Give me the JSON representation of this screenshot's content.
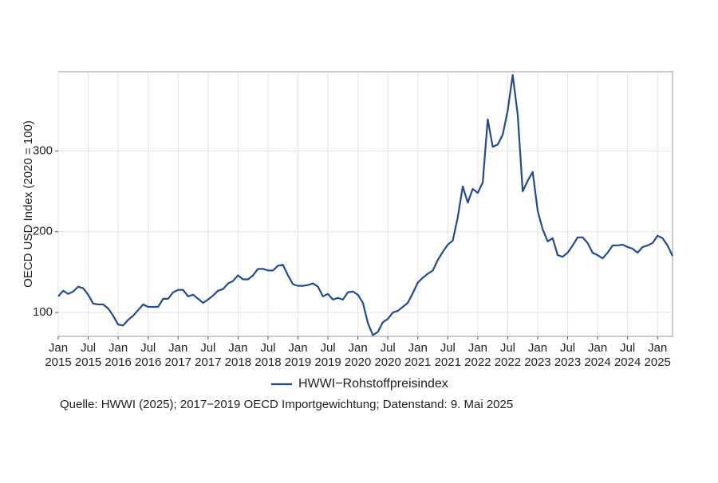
{
  "chart_data": {
    "type": "line",
    "y_label": "OECD USD Index (2020 = 100)",
    "caption": "Quelle: HWWI (2025); 2017−2019 OECD Importgewichtung; Datenstand: 9. Mai 2025",
    "legend": "bottom",
    "grid": true,
    "xlim": [
      "2015-01",
      "2025-04"
    ],
    "xticks": [
      {
        "value": "2015-01",
        "label": "Jan 2015"
      },
      {
        "value": "2015-07",
        "label": "Jul 2015"
      },
      {
        "value": "2016-01",
        "label": "Jan 2016"
      },
      {
        "value": "2016-07",
        "label": "Jul 2016"
      },
      {
        "value": "2017-01",
        "label": "Jan 2017"
      },
      {
        "value": "2017-07",
        "label": "Jul 2017"
      },
      {
        "value": "2018-01",
        "label": "Jan 2018"
      },
      {
        "value": "2018-07",
        "label": "Jul 2018"
      },
      {
        "value": "2019-01",
        "label": "Jan 2019"
      },
      {
        "value": "2019-07",
        "label": "Jul 2019"
      },
      {
        "value": "2020-01",
        "label": "Jan 2020"
      },
      {
        "value": "2020-07",
        "label": "Jul 2020"
      },
      {
        "value": "2021-01",
        "label": "Jan 2021"
      },
      {
        "value": "2021-07",
        "label": "Jul 2021"
      },
      {
        "value": "2022-01",
        "label": "Jan 2022"
      },
      {
        "value": "2022-07",
        "label": "Jul 2022"
      },
      {
        "value": "2023-01",
        "label": "Jan 2023"
      },
      {
        "value": "2023-07",
        "label": "Jul 2023"
      },
      {
        "value": "2024-01",
        "label": "Jan 2024"
      },
      {
        "value": "2024-07",
        "label": "Jul 2024"
      },
      {
        "value": "2025-01",
        "label": "Jan 2025"
      }
    ],
    "ylim": [
      70.5,
      398
    ],
    "yticks": [
      100,
      200,
      300
    ],
    "x": [
      "2015-01",
      "2015-02",
      "2015-03",
      "2015-04",
      "2015-05",
      "2015-06",
      "2015-07",
      "2015-08",
      "2015-09",
      "2015-10",
      "2015-11",
      "2015-12",
      "2016-01",
      "2016-02",
      "2016-03",
      "2016-04",
      "2016-05",
      "2016-06",
      "2016-07",
      "2016-08",
      "2016-09",
      "2016-10",
      "2016-11",
      "2016-12",
      "2017-01",
      "2017-02",
      "2017-03",
      "2017-04",
      "2017-05",
      "2017-06",
      "2017-07",
      "2017-08",
      "2017-09",
      "2017-10",
      "2017-11",
      "2017-12",
      "2018-01",
      "2018-02",
      "2018-03",
      "2018-04",
      "2018-05",
      "2018-06",
      "2018-07",
      "2018-08",
      "2018-09",
      "2018-10",
      "2018-11",
      "2018-12",
      "2019-01",
      "2019-02",
      "2019-03",
      "2019-04",
      "2019-05",
      "2019-06",
      "2019-07",
      "2019-08",
      "2019-09",
      "2019-10",
      "2019-11",
      "2019-12",
      "2020-01",
      "2020-02",
      "2020-03",
      "2020-04",
      "2020-05",
      "2020-06",
      "2020-07",
      "2020-08",
      "2020-09",
      "2020-10",
      "2020-11",
      "2020-12",
      "2021-01",
      "2021-02",
      "2021-03",
      "2021-04",
      "2021-05",
      "2021-06",
      "2021-07",
      "2021-08",
      "2021-09",
      "2021-10",
      "2021-11",
      "2021-12",
      "2022-01",
      "2022-02",
      "2022-03",
      "2022-04",
      "2022-05",
      "2022-06",
      "2022-07",
      "2022-08",
      "2022-09",
      "2022-10",
      "2022-11",
      "2022-12",
      "2023-01",
      "2023-02",
      "2023-03",
      "2023-04",
      "2023-05",
      "2023-06",
      "2023-07",
      "2023-08",
      "2023-09",
      "2023-10",
      "2023-11",
      "2023-12",
      "2024-01",
      "2024-02",
      "2024-03",
      "2024-04",
      "2024-05",
      "2024-06",
      "2024-07",
      "2024-08",
      "2024-09",
      "2024-10",
      "2024-11",
      "2024-12",
      "2025-01",
      "2025-02",
      "2025-03",
      "2025-04"
    ],
    "series": [
      {
        "name": "HWWI−Rohstoffpreisindex",
        "color": "#234b94",
        "values": [
          120,
          127,
          123,
          126,
          132,
          130,
          122,
          111,
          110,
          110,
          105,
          96,
          85,
          84,
          91,
          96,
          103,
          110,
          107,
          107,
          107,
          117,
          117,
          125,
          128,
          128,
          120,
          122,
          117,
          112,
          116,
          121,
          127,
          129,
          136,
          139,
          146,
          141,
          141,
          146,
          154,
          154,
          152,
          152,
          158,
          159,
          146,
          135,
          133,
          133,
          134,
          136,
          132,
          120,
          123,
          116,
          118,
          116,
          125,
          126,
          122,
          112,
          87,
          72,
          76,
          88,
          92,
          100,
          102,
          107,
          112,
          124,
          137,
          143,
          148,
          152,
          165,
          175,
          184,
          189,
          218,
          256,
          236,
          253,
          248,
          261,
          339,
          305,
          308,
          320,
          350,
          394,
          345,
          250,
          263,
          274,
          226,
          203,
          188,
          192,
          171,
          169,
          174,
          183,
          193,
          193,
          186,
          174,
          171,
          167,
          174,
          183,
          183,
          184,
          181,
          179,
          174,
          181,
          183,
          186,
          195,
          192,
          183,
          170
        ]
      }
    ]
  }
}
